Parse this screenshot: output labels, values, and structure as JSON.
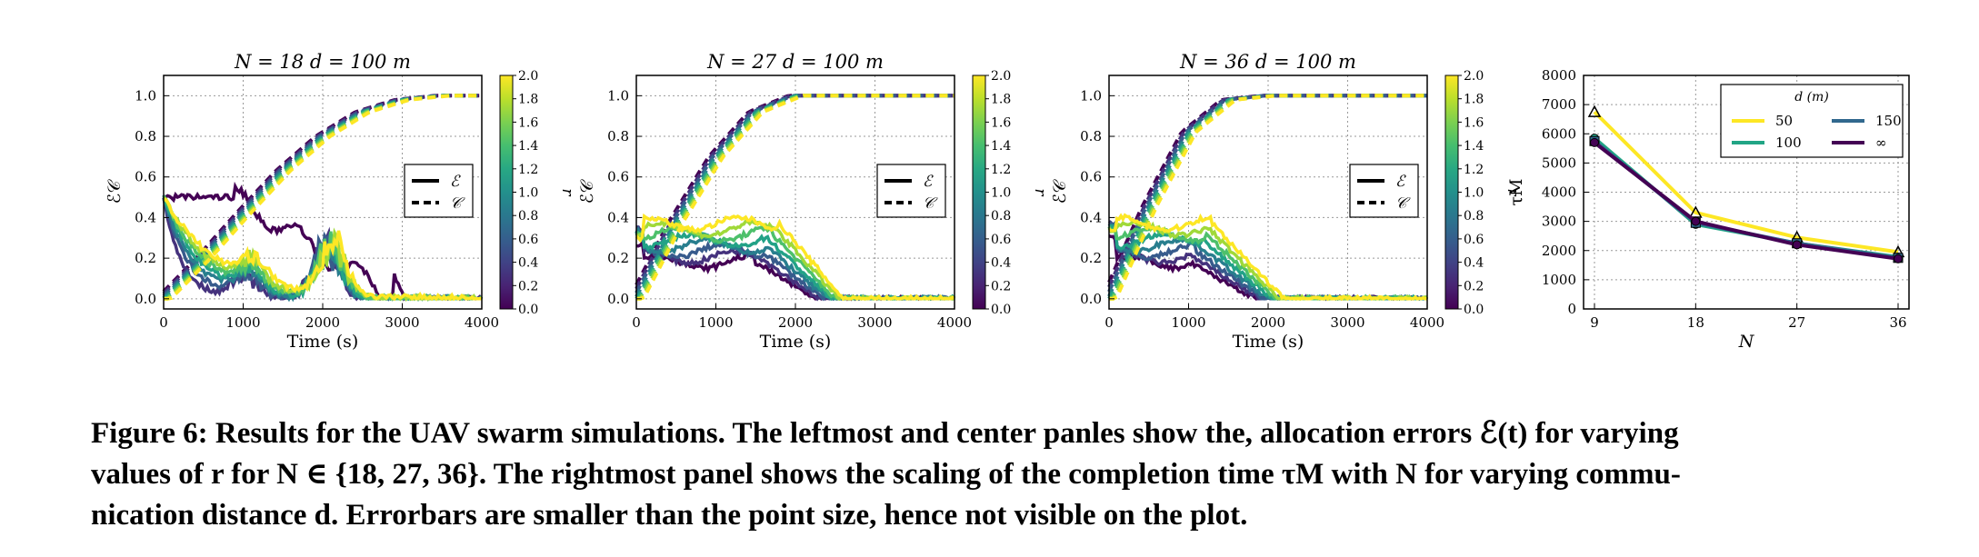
{
  "chart_data": [
    {
      "type": "line",
      "title": "N = 18   d = 100 m",
      "xlabel": "Time (s)",
      "ylabel": "ℰ𝒞",
      "xlim": [
        0,
        4000
      ],
      "ylim": [
        -0.05,
        1.1
      ],
      "xticks": [
        "0",
        "1000",
        "2000",
        "3000",
        "4000"
      ],
      "yticks": [
        "0.0",
        "0.2",
        "0.4",
        "0.6",
        "0.8",
        "1.0"
      ],
      "legend": {
        "placement": "center-right",
        "entries": [
          "ℰ",
          "𝒞"
        ],
        "styles": [
          "solid",
          "dashed"
        ]
      },
      "colorbar": {
        "label": "r",
        "min": 0.0,
        "max": 2.0,
        "ticks": [
          "0.0",
          "0.2",
          "0.4",
          "0.6",
          "0.8",
          "1.0",
          "1.2",
          "1.4",
          "1.6",
          "1.8",
          "2.0"
        ],
        "colormap": "viridis"
      },
      "grid": true,
      "series_error_shape": {
        "start": 0.5,
        "plateau": 0.5,
        "decay_start": 1000,
        "bumps": [
          [
            1000,
            0.12
          ],
          [
            2000,
            0.28
          ]
        ],
        "end": 3000
      },
      "completion": {
        "x": [
          0,
          500,
          1000,
          1500,
          2000,
          2500,
          3000,
          3500,
          4000
        ],
        "y": [
          0.0,
          0.2,
          0.42,
          0.63,
          0.8,
          0.92,
          0.98,
          1.0,
          1.0
        ]
      }
    },
    {
      "type": "line",
      "title": "N = 27   d = 100 m",
      "xlabel": "Time (s)",
      "ylabel": "ℰ𝒞",
      "xlim": [
        0,
        4000
      ],
      "ylim": [
        -0.05,
        1.1
      ],
      "xticks": [
        "0",
        "1000",
        "2000",
        "3000",
        "4000"
      ],
      "yticks": [
        "0.0",
        "0.2",
        "0.4",
        "0.6",
        "0.8",
        "1.0"
      ],
      "legend": {
        "placement": "center-right",
        "entries": [
          "ℰ",
          "𝒞"
        ],
        "styles": [
          "solid",
          "dashed"
        ]
      },
      "colorbar": {
        "label": "r",
        "min": 0.0,
        "max": 2.0,
        "ticks": [
          "0.0",
          "0.2",
          "0.4",
          "0.6",
          "0.8",
          "1.0",
          "1.2",
          "1.4",
          "1.6",
          "1.8",
          "2.0"
        ],
        "colormap": "viridis"
      },
      "grid": true,
      "series_error_shape": {
        "start": 0.35,
        "plateau": 0.3,
        "decay_start": 1800,
        "end": 2600
      },
      "completion": {
        "x": [
          0,
          500,
          1000,
          1500,
          2000,
          2500,
          3000,
          4000
        ],
        "y": [
          0.0,
          0.38,
          0.7,
          0.92,
          1.0,
          1.0,
          1.0,
          1.0
        ]
      }
    },
    {
      "type": "line",
      "title": "N = 36   d = 100 m",
      "xlabel": "Time (s)",
      "ylabel": "ℰ𝒞",
      "xlim": [
        0,
        4000
      ],
      "ylim": [
        -0.05,
        1.1
      ],
      "xticks": [
        "0",
        "1000",
        "2000",
        "3000",
        "4000"
      ],
      "yticks": [
        "0.0",
        "0.2",
        "0.4",
        "0.6",
        "0.8",
        "1.0"
      ],
      "legend": {
        "placement": "center-right",
        "entries": [
          "ℰ",
          "𝒞"
        ],
        "styles": [
          "solid",
          "dashed"
        ]
      },
      "colorbar": {
        "label": "r",
        "min": 0.0,
        "max": 2.0,
        "ticks": [
          "0.0",
          "0.2",
          "0.4",
          "0.6",
          "0.8",
          "1.0",
          "1.2",
          "1.4",
          "1.6",
          "1.8",
          "2.0"
        ],
        "colormap": "viridis"
      },
      "grid": true,
      "series_error_shape": {
        "start": 0.38,
        "plateau": 0.3,
        "decay_start": 1300,
        "end": 2200
      },
      "completion": {
        "x": [
          0,
          500,
          1000,
          1500,
          2000,
          2500,
          4000
        ],
        "y": [
          0.0,
          0.45,
          0.82,
          0.98,
          1.0,
          1.0,
          1.0
        ]
      }
    },
    {
      "type": "line",
      "title": "",
      "xlabel": "N",
      "ylabel": "τM",
      "categories": [
        9,
        18,
        27,
        36
      ],
      "xticks": [
        "9",
        "18",
        "27",
        "36"
      ],
      "yticks": [
        "0",
        "1000",
        "2000",
        "3000",
        "4000",
        "5000",
        "6000",
        "7000",
        "8000"
      ],
      "ylim": [
        0,
        8000
      ],
      "grid": true,
      "legend": {
        "placement": "top-right",
        "title": "d (m)"
      },
      "series": [
        {
          "name": "50",
          "color": "#fde725",
          "marker": "triangle",
          "values": [
            6750,
            3300,
            2450,
            1950
          ]
        },
        {
          "name": "100",
          "color": "#21a585",
          "marker": "plus",
          "values": [
            5850,
            2900,
            2250,
            1780
          ]
        },
        {
          "name": "150",
          "color": "#31688e",
          "marker": "square",
          "values": [
            5750,
            2950,
            2250,
            1750
          ]
        },
        {
          "name": "∞",
          "color": "#440154",
          "marker": "plus",
          "values": [
            5700,
            3000,
            2200,
            1720
          ]
        }
      ]
    }
  ],
  "caption": {
    "line1": "Figure 6: Results for the UAV swarm simulations. The leftmost and center panles show the, allocation errors ℰ(t) for varying",
    "line2": "values of r for N ∈ {18, 27, 36}. The rightmost panel shows the scaling of the completion time τM with N for varying commu-",
    "line3": "nication distance d. Errorbars are smaller than the point size, hence not visible on the plot."
  }
}
